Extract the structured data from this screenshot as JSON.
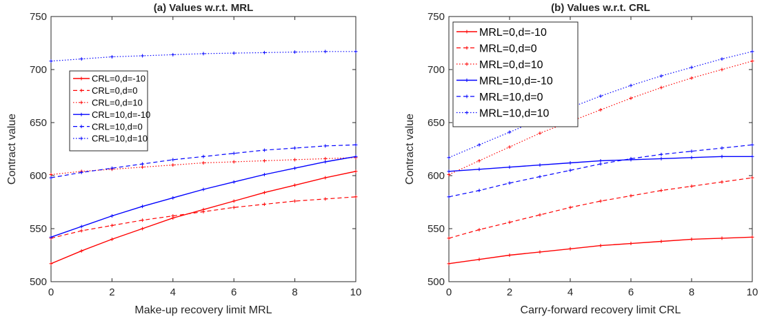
{
  "chart_data": [
    {
      "type": "line",
      "title": "(a) Values w.r.t. MRL",
      "xlabel": "Make-up recovery limit MRL",
      "ylabel": "Contract value",
      "xlim": [
        0,
        10
      ],
      "ylim": [
        500,
        750
      ],
      "xticks": [
        "0",
        "2",
        "4",
        "6",
        "8",
        "10"
      ],
      "yticks": [
        "500",
        "550",
        "600",
        "650",
        "700",
        "750"
      ],
      "grid": false,
      "legend_position": "middle-left",
      "x": [
        0,
        1,
        2,
        3,
        4,
        5,
        6,
        7,
        8,
        9,
        10
      ],
      "series": [
        {
          "name": "CRL=0,d=-10",
          "color": "#ff0000",
          "style": "solid",
          "values": [
            517,
            529,
            540,
            550,
            560,
            568,
            576,
            584,
            591,
            598,
            604
          ]
        },
        {
          "name": "CRL=0,d=0",
          "color": "#ff0000",
          "style": "dashed",
          "values": [
            541,
            548,
            553,
            558,
            562,
            566,
            570,
            573,
            576,
            578,
            580
          ]
        },
        {
          "name": "CRL=0,d=10",
          "color": "#ff0000",
          "style": "dotted",
          "values": [
            601,
            604,
            606,
            608,
            610,
            612,
            613,
            614,
            615,
            616,
            617
          ]
        },
        {
          "name": "CRL=10,d=-10",
          "color": "#0000ff",
          "style": "solid",
          "values": [
            542,
            552,
            562,
            571,
            579,
            587,
            594,
            601,
            607,
            613,
            618
          ]
        },
        {
          "name": "CRL=10,d=0",
          "color": "#0000ff",
          "style": "dashed",
          "values": [
            598,
            603,
            607,
            611,
            615,
            618,
            621,
            624,
            626,
            628,
            629
          ]
        },
        {
          "name": "CRL=10,d=10",
          "color": "#0000ff",
          "style": "dotted",
          "values": [
            708,
            710,
            712,
            713,
            714,
            715,
            715.5,
            716,
            716.5,
            717,
            717
          ]
        }
      ]
    },
    {
      "type": "line",
      "title": "(b) Values w.r.t. CRL",
      "xlabel": "Carry-forward recovery limit CRL",
      "ylabel": "Contract value",
      "xlim": [
        0,
        10
      ],
      "ylim": [
        500,
        750
      ],
      "xticks": [
        "0",
        "2",
        "4",
        "6",
        "8",
        "10"
      ],
      "yticks": [
        "500",
        "550",
        "600",
        "650",
        "700",
        "750"
      ],
      "grid": false,
      "legend_position": "top-left",
      "x": [
        0,
        1,
        2,
        3,
        4,
        5,
        6,
        7,
        8,
        9,
        10
      ],
      "series": [
        {
          "name": "MRL=0,d=-10",
          "color": "#ff0000",
          "style": "solid",
          "values": [
            517,
            521,
            525,
            528,
            531,
            534,
            536,
            538,
            540,
            541,
            542
          ]
        },
        {
          "name": "MRL=0,d=0",
          "color": "#ff0000",
          "style": "dashed",
          "values": [
            541,
            549,
            556,
            563,
            570,
            576,
            581,
            586,
            590,
            594,
            598
          ]
        },
        {
          "name": "MRL=0,d=10",
          "color": "#ff0000",
          "style": "dotted",
          "values": [
            601,
            614,
            627,
            640,
            651,
            662,
            673,
            683,
            692,
            700,
            708
          ]
        },
        {
          "name": "MRL=10,d=-10",
          "color": "#0000ff",
          "style": "solid",
          "values": [
            604,
            606,
            608,
            610,
            612,
            614,
            615,
            616,
            617,
            618,
            618
          ]
        },
        {
          "name": "MRL=10,d=0",
          "color": "#0000ff",
          "style": "dashed",
          "values": [
            580,
            586,
            593,
            599,
            605,
            611,
            616,
            620,
            623,
            626,
            629
          ]
        },
        {
          "name": "MRL=10,d=10",
          "color": "#0000ff",
          "style": "dotted",
          "values": [
            617,
            629,
            641,
            653,
            664,
            675,
            685,
            694,
            702,
            710,
            717
          ]
        }
      ]
    }
  ]
}
